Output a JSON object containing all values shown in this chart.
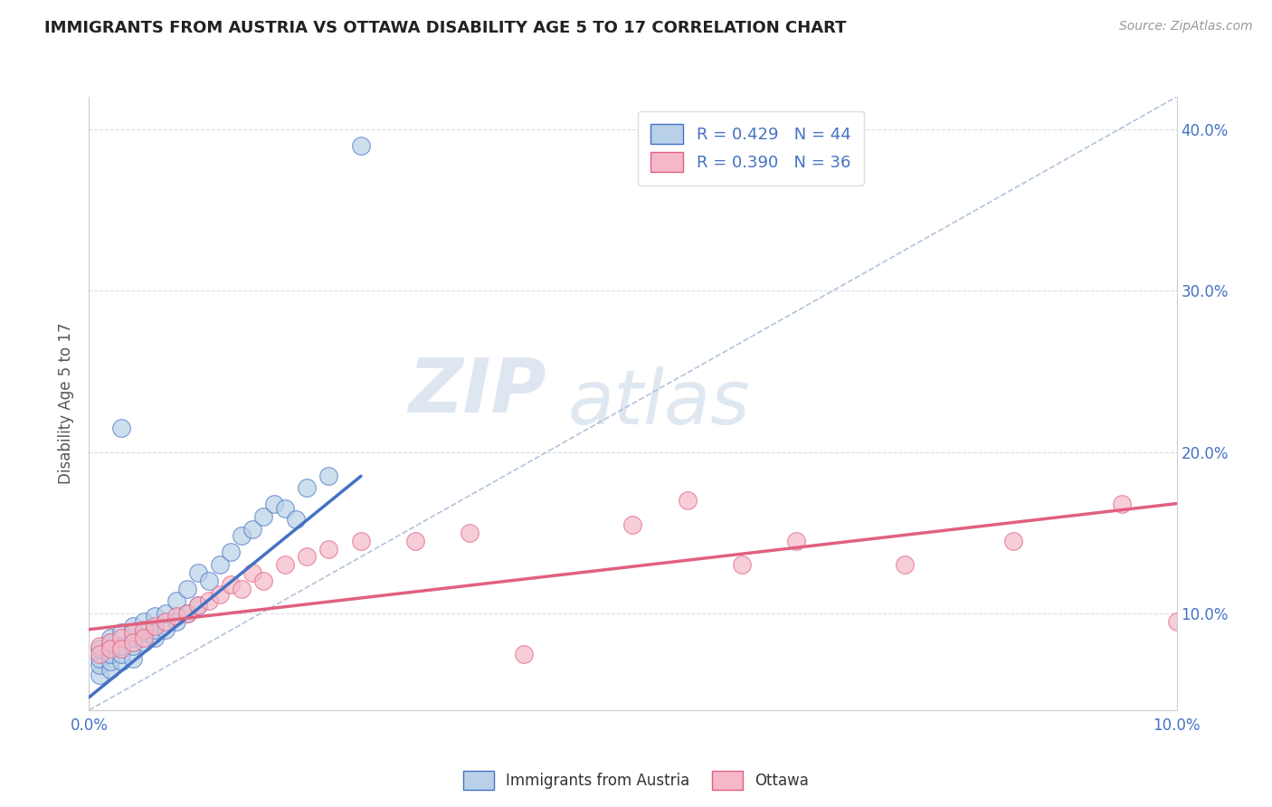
{
  "title": "IMMIGRANTS FROM AUSTRIA VS OTTAWA DISABILITY AGE 5 TO 17 CORRELATION CHART",
  "source": "Source: ZipAtlas.com",
  "ylabel": "Disability Age 5 to 17",
  "xlim": [
    0.0,
    0.1
  ],
  "ylim": [
    0.04,
    0.42
  ],
  "legend_blue_r": "R = 0.429",
  "legend_blue_n": "N = 44",
  "legend_pink_r": "R = 0.390",
  "legend_pink_n": "N = 36",
  "blue_color": "#b8d0e8",
  "blue_line_color": "#4472c4",
  "pink_color": "#f4b8c8",
  "pink_line_color": "#e06080",
  "ref_line_color": "#a8bcd8",
  "grid_color": "#d8dfe8",
  "title_color": "#222222",
  "source_color": "#999999",
  "axis_label_color": "#4472c4",
  "watermark_color": "#dce6f0",
  "blue_scatter_x": [
    0.001,
    0.001,
    0.001,
    0.001,
    0.002,
    0.002,
    0.002,
    0.002,
    0.002,
    0.003,
    0.003,
    0.003,
    0.003,
    0.004,
    0.004,
    0.004,
    0.004,
    0.005,
    0.005,
    0.005,
    0.006,
    0.006,
    0.006,
    0.007,
    0.007,
    0.008,
    0.008,
    0.009,
    0.009,
    0.01,
    0.01,
    0.011,
    0.012,
    0.013,
    0.014,
    0.015,
    0.016,
    0.017,
    0.018,
    0.019,
    0.02,
    0.022,
    0.003,
    0.025
  ],
  "blue_scatter_y": [
    0.062,
    0.068,
    0.072,
    0.078,
    0.065,
    0.07,
    0.075,
    0.082,
    0.085,
    0.07,
    0.075,
    0.08,
    0.088,
    0.072,
    0.08,
    0.085,
    0.092,
    0.082,
    0.088,
    0.095,
    0.085,
    0.09,
    0.098,
    0.09,
    0.1,
    0.095,
    0.108,
    0.1,
    0.115,
    0.105,
    0.125,
    0.12,
    0.13,
    0.138,
    0.148,
    0.152,
    0.16,
    0.168,
    0.165,
    0.158,
    0.178,
    0.185,
    0.215,
    0.39
  ],
  "pink_scatter_x": [
    0.001,
    0.001,
    0.002,
    0.002,
    0.003,
    0.003,
    0.004,
    0.004,
    0.005,
    0.005,
    0.006,
    0.007,
    0.008,
    0.009,
    0.01,
    0.011,
    0.012,
    0.013,
    0.014,
    0.015,
    0.016,
    0.018,
    0.02,
    0.022,
    0.025,
    0.03,
    0.035,
    0.04,
    0.05,
    0.055,
    0.06,
    0.065,
    0.075,
    0.085,
    0.095,
    0.1
  ],
  "pink_scatter_y": [
    0.08,
    0.075,
    0.082,
    0.078,
    0.085,
    0.078,
    0.088,
    0.082,
    0.09,
    0.085,
    0.092,
    0.095,
    0.098,
    0.1,
    0.105,
    0.108,
    0.112,
    0.118,
    0.115,
    0.125,
    0.12,
    0.13,
    0.135,
    0.14,
    0.145,
    0.145,
    0.15,
    0.075,
    0.155,
    0.17,
    0.13,
    0.145,
    0.13,
    0.145,
    0.168,
    0.095
  ],
  "blue_trend_x": [
    0.0,
    0.025
  ],
  "blue_trend_y": [
    0.048,
    0.185
  ],
  "pink_trend_x": [
    0.0,
    0.1
  ],
  "pink_trend_y": [
    0.09,
    0.168
  ],
  "ref_line_x": [
    0.0,
    0.1
  ],
  "ref_line_y": [
    0.04,
    0.42
  ]
}
